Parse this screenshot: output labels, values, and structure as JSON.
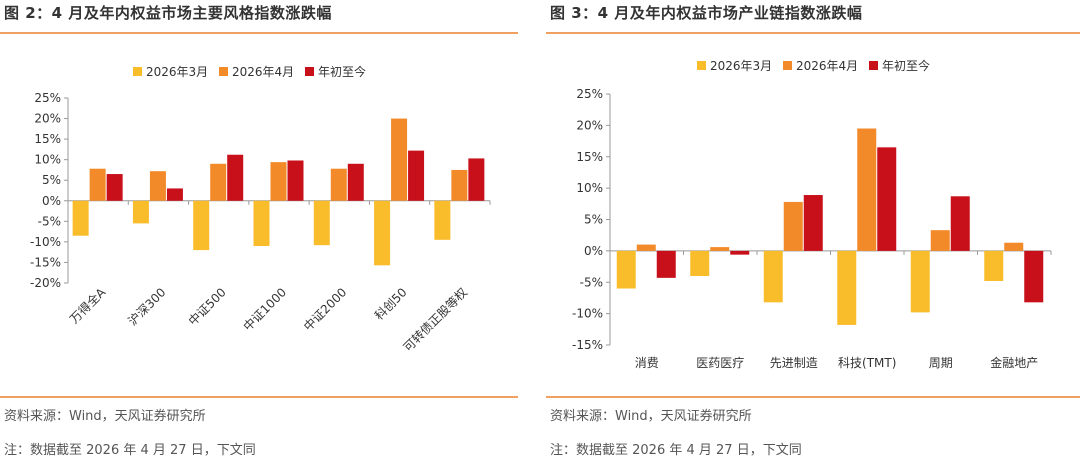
{
  "colors": {
    "march": "#f9bd2b",
    "april": "#f28a2a",
    "ytd": "#c8101a",
    "rule": "#f0a060"
  },
  "legend": [
    "2026年3月",
    "2026年4月",
    "年初至今"
  ],
  "left": {
    "title": "图 2：4 月及年内权益市场主要风格指数涨跌幅",
    "source": "资料来源：Wind，天风证券研究所",
    "note": "注：数据截至 2026 年 4 月 27 日，下文同"
  },
  "right": {
    "title": "图 3：4 月及年内权益市场产业链指数涨跌幅",
    "source": "资料来源：Wind，天风证券研究所",
    "note": "注：数据截至 2026 年 4 月 27 日，下文同"
  },
  "chart_data": [
    {
      "type": "bar",
      "categories": [
        "万得全A",
        "沪深300",
        "中证500",
        "中证1000",
        "中证2000",
        "科创50",
        "可转债正股等权"
      ],
      "series": [
        {
          "name": "2026年3月",
          "values": [
            -8.5,
            -5.5,
            -12.0,
            -11.0,
            -10.8,
            -15.7,
            -9.5
          ]
        },
        {
          "name": "2026年4月",
          "values": [
            7.8,
            7.2,
            9.0,
            9.4,
            7.8,
            20.0,
            7.5
          ]
        },
        {
          "name": "年初至今",
          "values": [
            6.5,
            3.0,
            11.2,
            9.8,
            9.0,
            12.2,
            10.3
          ]
        }
      ],
      "ylim": [
        -20,
        25
      ],
      "yticks": [
        "25%",
        "20%",
        "15%",
        "10%",
        "5%",
        "0%",
        "-5%",
        "-10%",
        "-15%",
        "-20%"
      ],
      "legend_position": "top-center",
      "grid": false
    },
    {
      "type": "bar",
      "categories": [
        "消费",
        "医药医疗",
        "先进制造",
        "科技(TMT)",
        "周期",
        "金融地产"
      ],
      "series": [
        {
          "name": "2026年3月",
          "values": [
            -6.0,
            -4.0,
            -8.2,
            -11.8,
            -9.8,
            -4.8
          ]
        },
        {
          "name": "2026年4月",
          "values": [
            1.0,
            0.6,
            7.8,
            19.5,
            3.3,
            1.3
          ]
        },
        {
          "name": "年初至今",
          "values": [
            -4.3,
            -0.6,
            8.9,
            16.5,
            8.7,
            -8.2
          ]
        }
      ],
      "ylim": [
        -15,
        25
      ],
      "yticks": [
        "25%",
        "20%",
        "15%",
        "10%",
        "5%",
        "0%",
        "-5%",
        "-10%",
        "-15%"
      ],
      "legend_position": "top-center",
      "grid": false
    }
  ]
}
